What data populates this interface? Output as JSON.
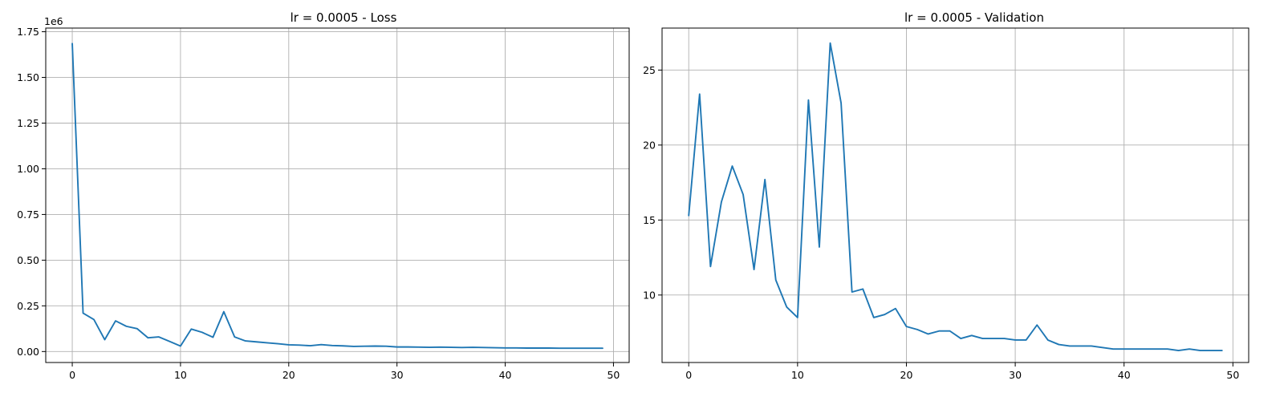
{
  "colors": {
    "series": "#1f77b4",
    "grid": "#b0b0b0",
    "axis": "#000000",
    "background": "#ffffff"
  },
  "chart_data": [
    {
      "type": "line",
      "title": "lr = 0.0005 - Loss",
      "xlabel": "",
      "ylabel": "",
      "xlim": [
        -2.45,
        51.45
      ],
      "ylim": [
        -60000,
        1770000
      ],
      "x_ticks": [
        0,
        10,
        20,
        30,
        40,
        50
      ],
      "x_tick_labels": [
        "0",
        "10",
        "20",
        "30",
        "40",
        "50"
      ],
      "y_ticks": [
        0,
        250000,
        500000,
        750000,
        1000000,
        1250000,
        1500000,
        1750000
      ],
      "y_tick_labels": [
        "0.00",
        "0.25",
        "0.50",
        "0.75",
        "1.00",
        "1.25",
        "1.50",
        "1.75"
      ],
      "y_offset_label": "1e6",
      "grid": true,
      "series": [
        {
          "name": "",
          "x": [
            0,
            1,
            2,
            3,
            4,
            5,
            6,
            7,
            8,
            9,
            10,
            11,
            12,
            13,
            14,
            15,
            16,
            17,
            18,
            19,
            20,
            21,
            22,
            23,
            24,
            25,
            26,
            27,
            28,
            29,
            30,
            31,
            32,
            33,
            34,
            35,
            36,
            37,
            38,
            39,
            40,
            41,
            42,
            43,
            44,
            45,
            46,
            47,
            48,
            49
          ],
          "y": [
            1685000,
            210000,
            175000,
            65000,
            168000,
            138000,
            125000,
            75000,
            80000,
            55000,
            30000,
            123000,
            105000,
            78000,
            218000,
            80000,
            58000,
            53000,
            48000,
            43000,
            37000,
            35000,
            32000,
            38000,
            33000,
            31000,
            28000,
            29000,
            30000,
            29000,
            25000,
            25000,
            24000,
            23000,
            24000,
            23000,
            22000,
            23000,
            22000,
            21000,
            20000,
            20000,
            19000,
            19000,
            19000,
            18000,
            18000,
            18000,
            18000,
            18000
          ]
        }
      ]
    },
    {
      "type": "line",
      "title": "lr = 0.0005 - Validation",
      "xlabel": "",
      "ylabel": "",
      "xlim": [
        -2.45,
        51.45
      ],
      "ylim": [
        5.5,
        27.8
      ],
      "x_ticks": [
        0,
        10,
        20,
        30,
        40,
        50
      ],
      "x_tick_labels": [
        "0",
        "10",
        "20",
        "30",
        "40",
        "50"
      ],
      "y_ticks": [
        10,
        15,
        20,
        25
      ],
      "y_tick_labels": [
        "10",
        "15",
        "20",
        "25"
      ],
      "grid": true,
      "series": [
        {
          "name": "",
          "x": [
            0,
            1,
            2,
            3,
            4,
            5,
            6,
            7,
            8,
            9,
            10,
            11,
            12,
            13,
            14,
            15,
            16,
            17,
            18,
            19,
            20,
            21,
            22,
            23,
            24,
            25,
            26,
            27,
            28,
            29,
            30,
            31,
            32,
            33,
            34,
            35,
            36,
            37,
            38,
            39,
            40,
            41,
            42,
            43,
            44,
            45,
            46,
            47,
            48,
            49
          ],
          "y": [
            15.3,
            23.4,
            11.9,
            16.2,
            18.6,
            16.7,
            11.7,
            17.7,
            11.0,
            9.2,
            8.5,
            23.0,
            13.2,
            26.8,
            22.8,
            10.2,
            10.4,
            8.5,
            8.7,
            9.1,
            7.9,
            7.7,
            7.4,
            7.6,
            7.6,
            7.1,
            7.3,
            7.1,
            7.1,
            7.1,
            7.0,
            7.0,
            8.0,
            7.0,
            6.7,
            6.6,
            6.6,
            6.6,
            6.5,
            6.4,
            6.4,
            6.4,
            6.4,
            6.4,
            6.4,
            6.3,
            6.4,
            6.3,
            6.3,
            6.3
          ]
        }
      ]
    }
  ]
}
